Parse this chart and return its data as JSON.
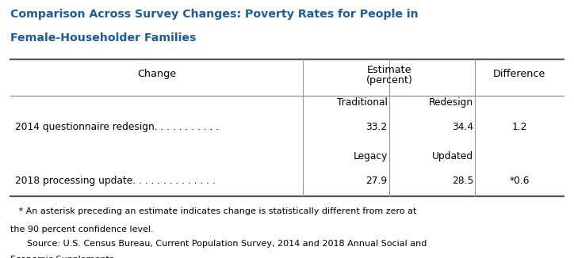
{
  "title_line1": "Comparison Across Survey Changes: Poverty Rates for People in",
  "title_line2": "Female-Householder Families",
  "title_color": "#1F5C99",
  "header_col1": "Change",
  "header_col2a": "Estimate",
  "header_col2b": "(percent)",
  "header_col3": "Difference",
  "subheader_row1_col2a": "Traditional",
  "subheader_row1_col2b": "Redesign",
  "subheader_row2_col2a": "Legacy",
  "subheader_row2_col2b": "Updated",
  "row1_label": "2014 questionnaire redesign. . . . . . . . . . .",
  "row1_col2a": "33.2",
  "row1_col2b": "34.4",
  "row1_col3": "1.2",
  "row2_label": "2018 processing update. . . . . . . . . . . . . .",
  "row2_col2a": "27.9",
  "row2_col2b": "28.5",
  "row2_col3": "*0.6",
  "footnote1": "   * An asterisk preceding an estimate indicates change is statistically different from zero at",
  "footnote2": "the 90 percent confidence level.",
  "footnote3": "      Source: U.S. Census Bureau, Current Population Survey, 2014 and 2018 Annual Social and",
  "footnote4": "Economic Supplements.",
  "bg_color": "#FFFFFF",
  "table_text_color": "#000000",
  "line_color_heavy": "#555555",
  "line_color_light": "#999999"
}
